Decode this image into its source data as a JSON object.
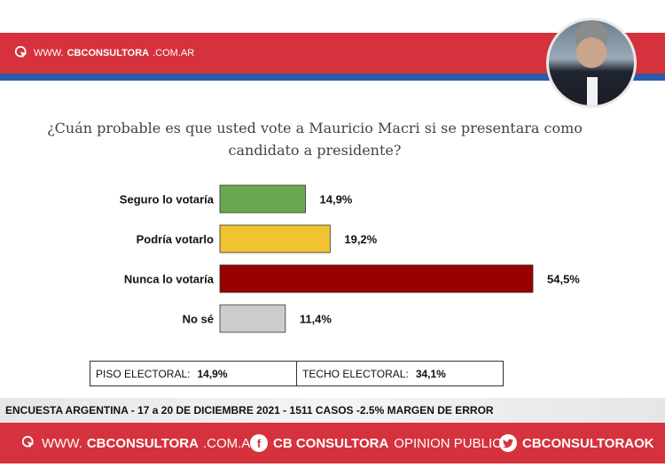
{
  "header": {
    "brand_www": "WWW.",
    "brand_name": "CBCONSULTORA",
    "brand_tld": ".COM.AR"
  },
  "question": "¿Cuán probable es que usted vote a Mauricio Macri si se presentara como candidato a presidente?",
  "chart_data": {
    "type": "bar",
    "orientation": "horizontal",
    "categories": [
      "Seguro lo votaría",
      "Podría votarlo",
      "Nunca lo votaría",
      "No sé"
    ],
    "values": [
      14.9,
      19.2,
      54.5,
      11.4
    ],
    "value_labels": [
      "14,9%",
      "19,2%",
      "54,5%",
      "11,4%"
    ],
    "colors": [
      "#6aa84f",
      "#f1c232",
      "#990000",
      "#cccccc"
    ],
    "xlim": [
      0,
      60
    ]
  },
  "stats": {
    "floor_label": "PISO ELECTORAL:",
    "floor_value": "14,9%",
    "ceiling_label": "TECHO ELECTORAL:",
    "ceiling_value": "34,1%"
  },
  "survey_note": "ENCUESTA ARGENTINA - 17 a 20 DE DICIEMBRE 2021 - 1511 CASOS -2.5% MARGEN DE ERROR",
  "footer": {
    "web_www": "WWW.",
    "web_name": "CBCONSULTORA",
    "web_tld": ".COM.AR",
    "fb_icon": "f",
    "fb_name": "CB CONSULTORA",
    "fb_rest": "OPINION PUBLICA",
    "tw_name": "CBCONSULTORAOK"
  }
}
